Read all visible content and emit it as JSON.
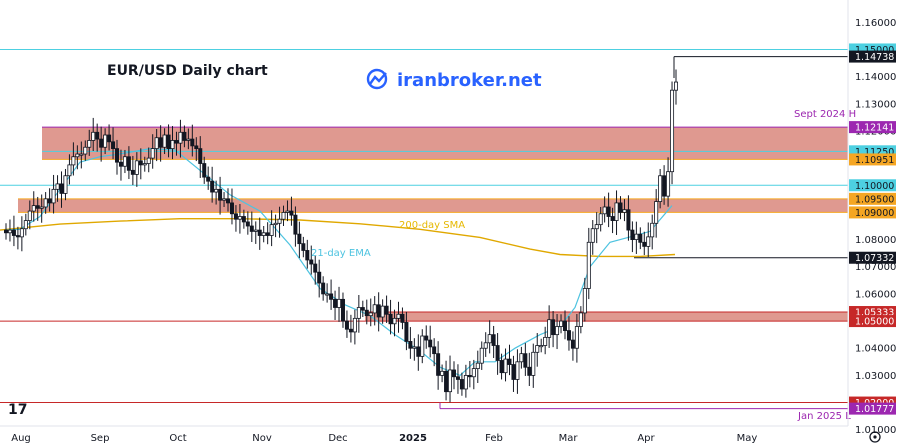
{
  "chart_data": {
    "type": "candlestick",
    "title": "EUR/USD Daily chart",
    "watermark": "iranbroker.net",
    "price_range": [
      1.011,
      1.166
    ],
    "y_ticks": [
      "1.16000",
      "1.15000",
      "1.14000",
      "1.13000",
      "1.12000",
      "1.11000",
      "1.10000",
      "1.09000",
      "1.08000",
      "1.07000",
      "1.06000",
      "1.05000",
      "1.04000",
      "1.03000",
      "1.02000",
      "1.01000"
    ],
    "x_ticks": [
      "Aug",
      "Sep",
      "Oct",
      "Nov",
      "Dec",
      "2025",
      "Feb",
      "Mar",
      "Apr",
      "May"
    ],
    "levels": [
      {
        "label": "1.15000",
        "value": 1.15,
        "color": "#4dd0e1",
        "text_color": "#131722"
      },
      {
        "label": "1.14738",
        "value": 1.14738,
        "color": "#131722",
        "text_color": "#ffffff"
      },
      {
        "label": "1.12141",
        "value": 1.12141,
        "color": "#9c27b0",
        "text_color": "#ffffff"
      },
      {
        "label": "1.11250",
        "value": 1.1125,
        "color": "#4dd0e1",
        "text_color": "#131722"
      },
      {
        "label": "1.10951",
        "value": 1.10951,
        "color": "#f5a623",
        "text_color": "#131722"
      },
      {
        "label": "1.10000",
        "value": 1.1,
        "color": "#4dd0e1",
        "text_color": "#131722"
      },
      {
        "label": "1.09500",
        "value": 1.095,
        "color": "#f5a623",
        "text_color": "#131722"
      },
      {
        "label": "1.09000",
        "value": 1.09,
        "color": "#f5a623",
        "text_color": "#131722"
      },
      {
        "label": "1.07332",
        "value": 1.07332,
        "color": "#131722",
        "text_color": "#ffffff"
      },
      {
        "label": "1.05333",
        "value": 1.05333,
        "color": "#c62828",
        "text_color": "#ffffff"
      },
      {
        "label": "1.05000",
        "value": 1.05,
        "color": "#c62828",
        "text_color": "#ffffff"
      },
      {
        "label": "1.02000",
        "value": 1.02,
        "color": "#c62828",
        "text_color": "#ffffff"
      },
      {
        "label": "1.01777",
        "value": 1.01777,
        "color": "#9c27b0",
        "text_color": "#ffffff"
      }
    ],
    "zones": [
      {
        "from": 1.1095,
        "to": 1.1214
      },
      {
        "from": 1.09,
        "to": 1.095
      },
      {
        "from": 1.05,
        "to": 1.0533
      }
    ],
    "annotations": [
      {
        "text": "Sept 2024 H",
        "color": "#9c27b0"
      },
      {
        "text": "Jan 2025 L",
        "color": "#9c27b0"
      },
      {
        "text": "200-day SMA",
        "color": "#e6b800"
      },
      {
        "text": "21-day EMA",
        "color": "#4dc3e0"
      }
    ],
    "sma200": [
      [
        0,
        1.0835
      ],
      [
        60,
        1.0857
      ],
      [
        120,
        1.0868
      ],
      [
        180,
        1.0877
      ],
      [
        240,
        1.0877
      ],
      [
        300,
        1.0872
      ],
      [
        360,
        1.0858
      ],
      [
        420,
        1.0838
      ],
      [
        480,
        1.0808
      ],
      [
        530,
        1.0765
      ],
      [
        560,
        1.0745
      ],
      [
        600,
        1.0738
      ],
      [
        640,
        1.0738
      ],
      [
        675,
        1.0745
      ]
    ],
    "ema21": [
      [
        5,
        1.0835
      ],
      [
        20,
        1.0838
      ],
      [
        40,
        1.0885
      ],
      [
        60,
        1.0985
      ],
      [
        80,
        1.1085
      ],
      [
        100,
        1.1105
      ],
      [
        120,
        1.1115
      ],
      [
        150,
        1.1135
      ],
      [
        175,
        1.113
      ],
      [
        200,
        1.1055
      ],
      [
        230,
        1.0965
      ],
      [
        260,
        1.0905
      ],
      [
        290,
        1.078
      ],
      [
        320,
        1.062
      ],
      [
        345,
        1.056
      ],
      [
        370,
        1.052
      ],
      [
        395,
        1.045
      ],
      [
        420,
        1.039
      ],
      [
        440,
        1.033
      ],
      [
        460,
        1.03
      ],
      [
        475,
        1.035
      ],
      [
        495,
        1.035
      ],
      [
        515,
        1.04
      ],
      [
        540,
        1.045
      ],
      [
        560,
        1.048
      ],
      [
        575,
        1.055
      ],
      [
        590,
        1.07
      ],
      [
        610,
        1.079
      ],
      [
        630,
        1.081
      ],
      [
        650,
        1.083
      ],
      [
        665,
        1.0895
      ],
      [
        672,
        1.0925
      ]
    ],
    "closes": [
      1.0825,
      1.0835,
      1.0815,
      1.081,
      1.084,
      1.087,
      1.0905,
      1.0925,
      1.0915,
      1.092,
      1.095,
      1.0935,
      1.0985,
      1.1005,
      1.097,
      1.1035,
      1.1075,
      1.1105,
      1.1115,
      1.1115,
      1.114,
      1.1165,
      1.1195,
      1.117,
      1.114,
      1.1185,
      1.116,
      1.1135,
      1.1085,
      1.107,
      1.1105,
      1.1055,
      1.104,
      1.109,
      1.1075,
      1.108,
      1.11,
      1.1135,
      1.1175,
      1.114,
      1.1185,
      1.1135,
      1.1165,
      1.1155,
      1.1195,
      1.1165,
      1.117,
      1.1145,
      1.1135,
      1.108,
      1.103,
      1.1015,
      1.0975,
      1.0985,
      1.0945,
      1.095,
      1.0935,
      1.0895,
      1.0875,
      1.0885,
      1.0865,
      1.085,
      1.083,
      1.0835,
      1.0815,
      1.0825,
      1.0815,
      1.0855,
      1.086,
      1.0875,
      1.09,
      1.0905,
      1.089,
      1.082,
      1.0785,
      1.076,
      1.0725,
      1.071,
      1.068,
      1.064,
      1.06,
      1.06,
      1.058,
      1.055,
      1.058,
      1.05,
      1.047,
      1.046,
      1.051,
      1.055,
      1.054,
      1.052,
      1.053,
      1.056,
      1.0515,
      1.0555,
      1.0525,
      1.049,
      1.051,
      1.0525,
      1.0495,
      1.0425,
      1.04,
      1.0405,
      1.037,
      1.0445,
      1.043,
      1.0405,
      1.038,
      1.03,
      1.0315,
      1.024,
      1.032,
      1.0295,
      1.0285,
      1.025,
      1.03,
      1.0295,
      1.0325,
      1.0345,
      1.04,
      1.042,
      1.045,
      1.041,
      1.0355,
      1.031,
      1.036,
      1.034,
      1.0285,
      1.035,
      1.038,
      1.033,
      1.03,
      1.0385,
      1.041,
      1.041,
      1.044,
      1.0505,
      1.045,
      1.048,
      1.05,
      1.0465,
      1.043,
      1.04,
      1.048,
      1.053,
      1.062,
      1.079,
      1.084,
      1.0855,
      1.0895,
      1.092,
      1.0885,
      1.087,
      1.0935,
      1.09,
      1.091,
      1.0835,
      1.08,
      1.082,
      1.079,
      1.0775,
      1.081,
      1.086,
      1.094,
      1.1035,
      1.096,
      1.105,
      1.135,
      1.138
    ],
    "opens": [
      1.0835,
      1.0825,
      1.0835,
      1.0815,
      1.081,
      1.084,
      1.087,
      1.0905,
      1.0925,
      1.0915,
      1.092,
      1.095,
      1.0935,
      1.0985,
      1.1005,
      1.097,
      1.1035,
      1.1075,
      1.1105,
      1.1115,
      1.1115,
      1.114,
      1.1165,
      1.1195,
      1.117,
      1.114,
      1.1185,
      1.116,
      1.1135,
      1.1085,
      1.107,
      1.1105,
      1.1055,
      1.104,
      1.109,
      1.1075,
      1.108,
      1.11,
      1.1135,
      1.1175,
      1.114,
      1.1185,
      1.1135,
      1.1165,
      1.1155,
      1.1195,
      1.1165,
      1.117,
      1.1145,
      1.1135,
      1.108,
      1.103,
      1.1015,
      1.0975,
      1.0985,
      1.0945,
      1.095,
      1.0935,
      1.0895,
      1.0875,
      1.0885,
      1.0865,
      1.085,
      1.083,
      1.0835,
      1.0815,
      1.0825,
      1.0815,
      1.0855,
      1.086,
      1.0875,
      1.09,
      1.0905,
      1.089,
      1.082,
      1.0785,
      1.076,
      1.0725,
      1.071,
      1.068,
      1.064,
      1.06,
      1.06,
      1.058,
      1.055,
      1.058,
      1.05,
      1.047,
      1.046,
      1.051,
      1.055,
      1.054,
      1.052,
      1.053,
      1.056,
      1.0515,
      1.0555,
      1.0525,
      1.049,
      1.051,
      1.0525,
      1.0495,
      1.0425,
      1.04,
      1.0405,
      1.037,
      1.0445,
      1.043,
      1.0405,
      1.038,
      1.03,
      1.0315,
      1.024,
      1.032,
      1.0295,
      1.0285,
      1.025,
      1.03,
      1.0295,
      1.0325,
      1.0345,
      1.04,
      1.042,
      1.045,
      1.041,
      1.0355,
      1.031,
      1.036,
      1.034,
      1.0285,
      1.035,
      1.038,
      1.033,
      1.03,
      1.0385,
      1.041,
      1.041,
      1.044,
      1.0505,
      1.045,
      1.048,
      1.05,
      1.0465,
      1.043,
      1.04,
      1.048,
      1.053,
      1.062,
      1.079,
      1.084,
      1.0855,
      1.0895,
      1.092,
      1.0885,
      1.087,
      1.0935,
      1.09,
      1.091,
      1.0835,
      1.08,
      1.082,
      1.079,
      1.0775,
      1.081,
      1.086,
      1.094,
      1.1035,
      1.096,
      1.105,
      1.135
    ]
  }
}
